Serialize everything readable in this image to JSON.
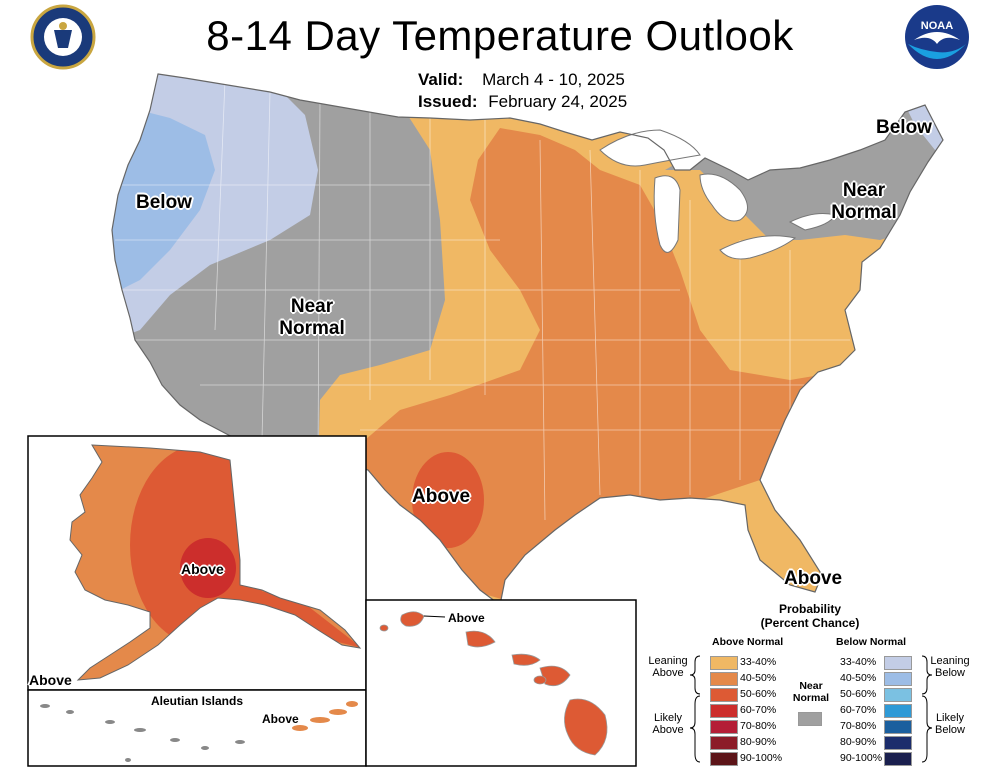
{
  "title": "8-14 Day Temperature Outlook",
  "valid": {
    "label": "Valid:",
    "value": "March 4 - 10, 2025"
  },
  "issued": {
    "label": "Issued:",
    "value": "February 24, 2025"
  },
  "logos": {
    "left": "doc-seal",
    "right": "noaa-logo"
  },
  "map_labels": {
    "below_west": "Below",
    "near_normal_west_1": "Near",
    "near_normal_west_2": "Normal",
    "below_northeast": "Below",
    "near_normal_east_1": "Near",
    "near_normal_east_2": "Normal",
    "above_texas": "Above",
    "above_florida": "Above",
    "above_alaska_interior": "Above",
    "above_alaska_corner": "Above",
    "aleutian_title": "Aleutian Islands",
    "above_aleutian": "Above",
    "above_hawaii": "Above"
  },
  "legend": {
    "title_line1": "Probability",
    "title_line2": "(Percent Chance)",
    "above_header": "Above Normal",
    "below_header": "Below Normal",
    "near_header_1": "Near",
    "near_header_2": "Normal",
    "leaning_above_1": "Leaning",
    "leaning_above_2": "Above",
    "likely_above_1": "Likely",
    "likely_above_2": "Above",
    "leaning_below_1": "Leaning",
    "leaning_below_2": "Below",
    "likely_below_1": "Likely",
    "likely_below_2": "Below",
    "above_rows": [
      {
        "range": "33-40%",
        "color": "#f0b864"
      },
      {
        "range": "40-50%",
        "color": "#e4894a"
      },
      {
        "range": "50-60%",
        "color": "#dd5a34"
      },
      {
        "range": "60-70%",
        "color": "#cc2e2c"
      },
      {
        "range": "70-80%",
        "color": "#b41e36"
      },
      {
        "range": "80-90%",
        "color": "#8c1c28"
      },
      {
        "range": "90-100%",
        "color": "#5c1418"
      }
    ],
    "below_rows": [
      {
        "range": "33-40%",
        "color": "#c3cde6"
      },
      {
        "range": "40-50%",
        "color": "#9dbde6"
      },
      {
        "range": "50-60%",
        "color": "#7bc1e2"
      },
      {
        "range": "60-70%",
        "color": "#2f9ad6"
      },
      {
        "range": "70-80%",
        "color": "#1b5f9e"
      },
      {
        "range": "80-90%",
        "color": "#1c2d6c"
      },
      {
        "range": "90-100%",
        "color": "#1a1f4e"
      }
    ],
    "near_color": "#a0a0a0"
  },
  "colors": {
    "lean_above": "#f0b864",
    "above_40_50": "#e4894a",
    "above_50_60": "#dd5a34",
    "above_60_70": "#cc2e2c",
    "lean_below": "#c3cde6",
    "below_40_50": "#9dbde6",
    "near_normal": "#a0a0a0"
  }
}
